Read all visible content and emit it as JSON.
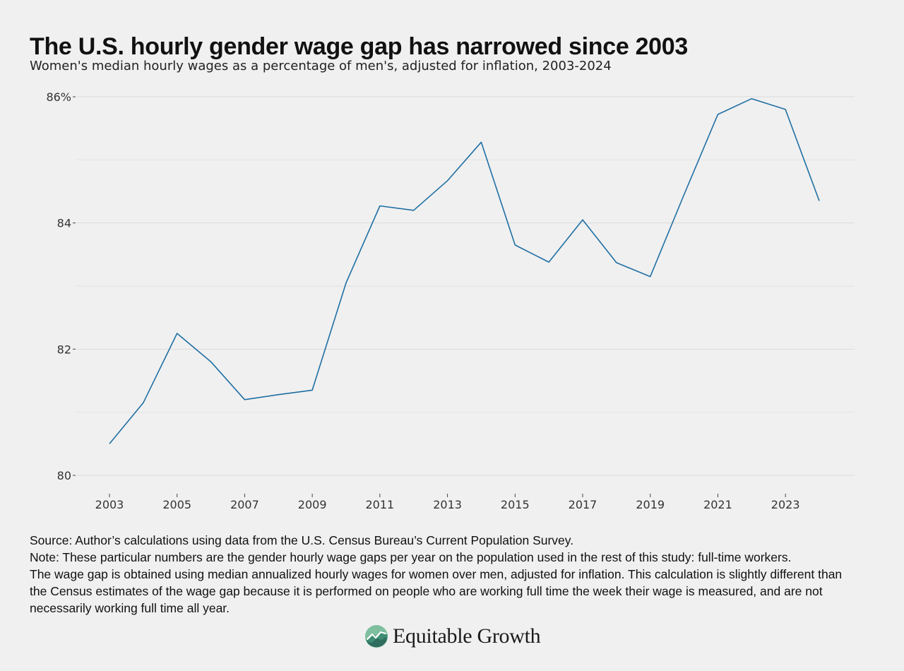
{
  "title": "The U.S. hourly gender wage gap has narrowed since 2003",
  "subtitle": "Women's median hourly wages as a percentage of men's, adjusted for inflation, 2003-2024",
  "chart_data": {
    "type": "line",
    "title": "The U.S. hourly gender wage gap has narrowed since 2003",
    "subtitle": "Women's median hourly wages as a percentage of men's, adjusted for inflation, 2003-2024",
    "xlabel": "",
    "ylabel": "",
    "x": [
      2003,
      2004,
      2005,
      2006,
      2007,
      2008,
      2009,
      2010,
      2011,
      2012,
      2013,
      2014,
      2015,
      2016,
      2017,
      2018,
      2019,
      2020,
      2021,
      2022,
      2023,
      2024
    ],
    "series": [
      {
        "values": [
          80.5,
          81.15,
          82.25,
          81.8,
          81.2,
          81.28,
          81.35,
          83.05,
          84.27,
          84.2,
          84.67,
          85.28,
          83.65,
          83.38,
          84.05,
          83.37,
          83.15,
          84.45,
          85.72,
          85.97,
          85.8,
          84.35
        ],
        "color": "#1f6fa3"
      }
    ],
    "ylim": [
      80,
      86
    ],
    "xlim": [
      2003,
      2024
    ],
    "y_ticks": [
      {
        "value": 80,
        "label": "80"
      },
      {
        "value": 82,
        "label": "82"
      },
      {
        "value": 84,
        "label": "84"
      },
      {
        "value": 86,
        "label": "86%"
      }
    ],
    "y_minor_gridlines": [
      81,
      83,
      85
    ],
    "x_ticks": [
      2003,
      2005,
      2007,
      2009,
      2011,
      2013,
      2015,
      2017,
      2019,
      2021,
      2023
    ],
    "grid": true,
    "legend": "none"
  },
  "notes": {
    "source": "Source:  Author’s calculations using data from the U.S. Census Bureau’s Current Population Survey.",
    "note_line1": "Note:  These particular numbers are the gender hourly wage gaps per year on the population used in the rest of this study: full-time workers.",
    "note_line2": "The wage gap is obtained using median annualized hourly wages for women over men, adjusted for inflation. This calculation is slightly different than the Census estimates of the wage gap because it is performed on people who are working full time the week their wage is measured, and are not necessarily working full time all year."
  },
  "logo": {
    "text": "Equitable Growth",
    "icon": "equitable-growth-logo-icon",
    "colors": [
      "#7dbf9e",
      "#3d8c74",
      "#2f6e5e"
    ]
  }
}
